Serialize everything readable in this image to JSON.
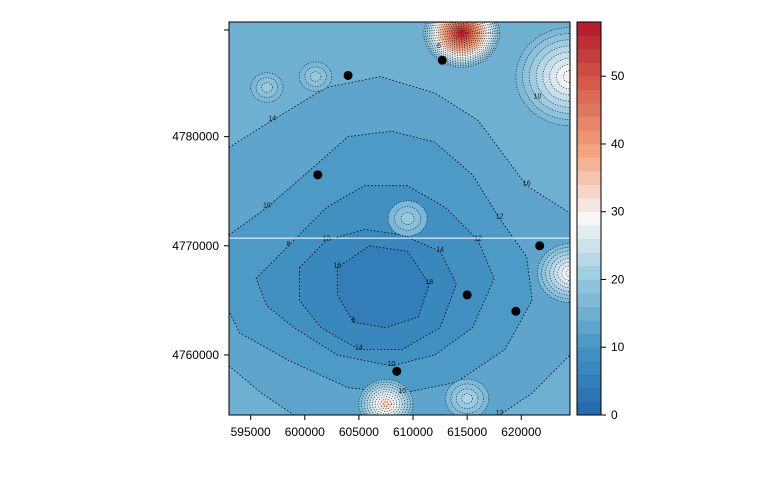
{
  "chart_data": {
    "type": "heatmap",
    "title": "",
    "xlabel": "",
    "ylabel": "",
    "xlim": [
      593000,
      624500
    ],
    "ylim": [
      4754500,
      4790500
    ],
    "x_ticks": [
      595000,
      600000,
      605000,
      610000,
      615000,
      620000
    ],
    "x_tick_labels": [
      "595000",
      "600000",
      "605000",
      "610000",
      "615000",
      "620000"
    ],
    "y_ticks": [
      4760000,
      4770000,
      4780000
    ],
    "y_tick_labels": [
      "4760000",
      "4770000",
      "4780000"
    ],
    "horizontal_reference_line_y": 4770700,
    "contour_line_style": "dotted",
    "contour_levels": [
      2,
      4,
      6,
      8,
      10,
      12,
      14,
      16,
      18,
      20,
      22,
      24,
      26,
      28,
      30,
      32,
      34,
      36,
      38,
      40,
      42,
      44,
      46,
      48,
      50,
      52,
      54,
      56
    ],
    "contour_labels_visible": [
      "14",
      "16",
      "12",
      "10",
      "12",
      "10",
      "8",
      "12",
      "10",
      "12",
      "14",
      "14",
      "16",
      "18",
      "8",
      "6",
      "10"
    ],
    "colorbar": {
      "min": 0,
      "max": 58,
      "ticks": [
        0,
        10,
        20,
        30,
        40,
        50
      ],
      "tick_labels": [
        "0",
        "10",
        "20",
        "30",
        "40",
        "50"
      ],
      "colors": [
        "#2166ac",
        "#4393c3",
        "#92c5de",
        "#f7f7f7",
        "#f4a582",
        "#d6604d",
        "#b2182b"
      ],
      "placement": "right"
    },
    "field": {
      "background_level": 15,
      "center": [
        606500,
        4766500
      ],
      "center_value": 7,
      "regions": [
        {
          "level": 13,
          "polygon": [
            [
              593000,
              4779000
            ],
            [
              597000,
              4781500
            ],
            [
              602000,
              4784500
            ],
            [
              607000,
              4785500
            ],
            [
              612000,
              4784000
            ],
            [
              616000,
              4781500
            ],
            [
              620500,
              4775500
            ],
            [
              624500,
              4773000
            ],
            [
              624500,
              4760000
            ],
            [
              621000,
              4756500
            ],
            [
              618000,
              4754500
            ],
            [
              599000,
              4754500
            ],
            [
              596000,
              4756500
            ],
            [
              593000,
              4759000
            ]
          ]
        },
        {
          "level": 11,
          "polygon": [
            [
              593000,
              4771000
            ],
            [
              596500,
              4773500
            ],
            [
              600000,
              4776500
            ],
            [
              604000,
              4780000
            ],
            [
              608000,
              4780500
            ],
            [
              612000,
              4779500
            ],
            [
              615500,
              4776500
            ],
            [
              618000,
              4772500
            ],
            [
              620500,
              4769000
            ],
            [
              621000,
              4765000
            ],
            [
              618500,
              4760500
            ],
            [
              614000,
              4757500
            ],
            [
              609000,
              4756500
            ],
            [
              604000,
              4757000
            ],
            [
              598500,
              4759500
            ],
            [
              594000,
              4762000
            ],
            [
              593000,
              4764000
            ]
          ]
        },
        {
          "level": 9,
          "polygon": [
            [
              595500,
              4767000
            ],
            [
              598500,
              4770000
            ],
            [
              602000,
              4773500
            ],
            [
              605500,
              4775500
            ],
            [
              609500,
              4775500
            ],
            [
              613000,
              4773500
            ],
            [
              616000,
              4770500
            ],
            [
              617500,
              4767000
            ],
            [
              615500,
              4762500
            ],
            [
              612000,
              4760000
            ],
            [
              608000,
              4759000
            ],
            [
              603000,
              4760000
            ],
            [
              599000,
              4762500
            ],
            [
              596500,
              4764500
            ]
          ]
        },
        {
          "level": 7,
          "polygon": [
            [
              599500,
              4768000
            ],
            [
              602000,
              4770500
            ],
            [
              605500,
              4771500
            ],
            [
              609000,
              4771000
            ],
            [
              612500,
              4769500
            ],
            [
              614000,
              4766500
            ],
            [
              612500,
              4762500
            ],
            [
              609000,
              4760500
            ],
            [
              605000,
              4760500
            ],
            [
              601500,
              4762500
            ],
            [
              599500,
              4765000
            ]
          ]
        },
        {
          "level": 5,
          "polygon": [
            [
              603000,
              4768000
            ],
            [
              606000,
              4770000
            ],
            [
              609500,
              4769500
            ],
            [
              611500,
              4766500
            ],
            [
              610500,
              4763500
            ],
            [
              607500,
              4762500
            ],
            [
              604500,
              4763000
            ],
            [
              603000,
              4765500
            ]
          ]
        }
      ],
      "hotspots": [
        {
          "x": 614500,
          "y": 4789500,
          "peak": 57,
          "radius": 3500
        },
        {
          "x": 624500,
          "y": 4785500,
          "peak": 30,
          "radius": 5000
        },
        {
          "x": 624500,
          "y": 4767500,
          "peak": 30,
          "radius": 3000
        },
        {
          "x": 607500,
          "y": 4755500,
          "peak": 34,
          "radius": 2500
        },
        {
          "x": 615000,
          "y": 4756000,
          "peak": 22,
          "radius": 2000
        },
        {
          "x": 596500,
          "y": 4784500,
          "peak": 20,
          "radius": 1500
        },
        {
          "x": 601000,
          "y": 4785500,
          "peak": 20,
          "radius": 1500
        },
        {
          "x": 609500,
          "y": 4772500,
          "peak": 20,
          "radius": 1800
        }
      ],
      "blobs": [
        {
          "x": 604000,
          "y": 4785600
        },
        {
          "x": 612700,
          "y": 4787000
        },
        {
          "x": 601200,
          "y": 4776500
        },
        {
          "x": 621700,
          "y": 4770000
        },
        {
          "x": 615000,
          "y": 4765500
        },
        {
          "x": 608500,
          "y": 4758500
        },
        {
          "x": 619500,
          "y": 4764000
        }
      ]
    }
  }
}
